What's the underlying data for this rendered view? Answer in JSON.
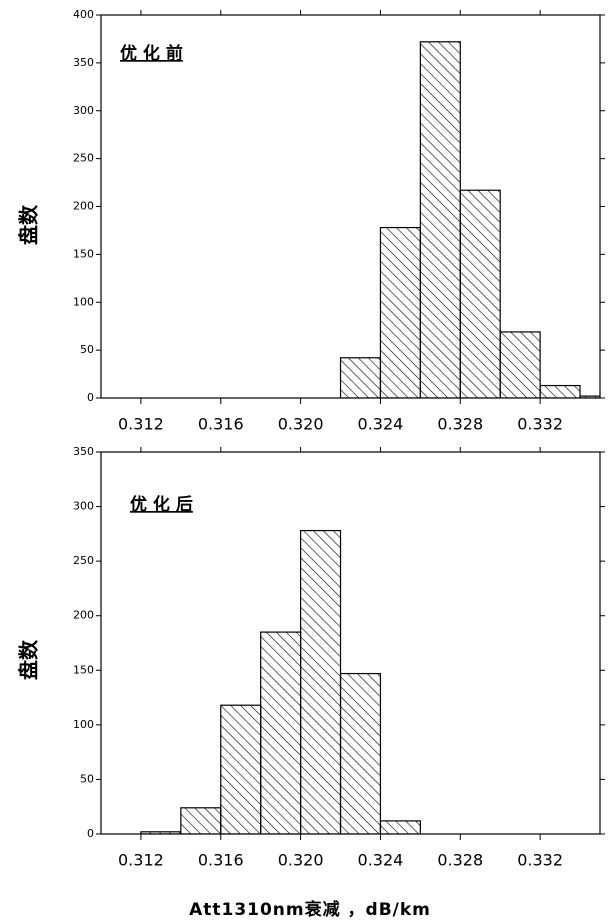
{
  "chart_data": [
    {
      "type": "histogram",
      "annotation": "优 化 前",
      "y_label": "盘数",
      "bins": [
        0.322,
        0.324,
        0.326,
        0.328,
        0.33,
        0.332,
        0.334,
        0.336
      ],
      "values": [
        42,
        178,
        372,
        217,
        69,
        13,
        2
      ],
      "color": "#000000",
      "xlim": [
        0.31,
        0.335
      ],
      "xticks": [
        0.312,
        0.316,
        {
          "value": 0.32,
          "label": "0.320"
        },
        0.324,
        0.328,
        0.332
      ],
      "ylim": [
        0,
        400
      ],
      "yticks": [
        0,
        50,
        100,
        150,
        200,
        250,
        300,
        350,
        400
      ]
    },
    {
      "type": "histogram",
      "annotation": "优 化 后",
      "y_label": "盘数",
      "x_label": "Att1310nm衰减  ，dB/km",
      "bins": [
        0.312,
        0.314,
        0.316,
        0.318,
        0.32,
        0.322,
        0.324,
        0.326
      ],
      "values": [
        2,
        24,
        118,
        185,
        278,
        147,
        12
      ],
      "color": "#000000",
      "xlim": [
        0.31,
        0.335
      ],
      "xticks": [
        0.312,
        0.316,
        {
          "value": 0.32,
          "label": "0.320"
        },
        0.324,
        0.328,
        0.332
      ],
      "ylim": [
        0,
        350
      ],
      "yticks": [
        0,
        50,
        100,
        150,
        200,
        250,
        300,
        350
      ]
    }
  ]
}
